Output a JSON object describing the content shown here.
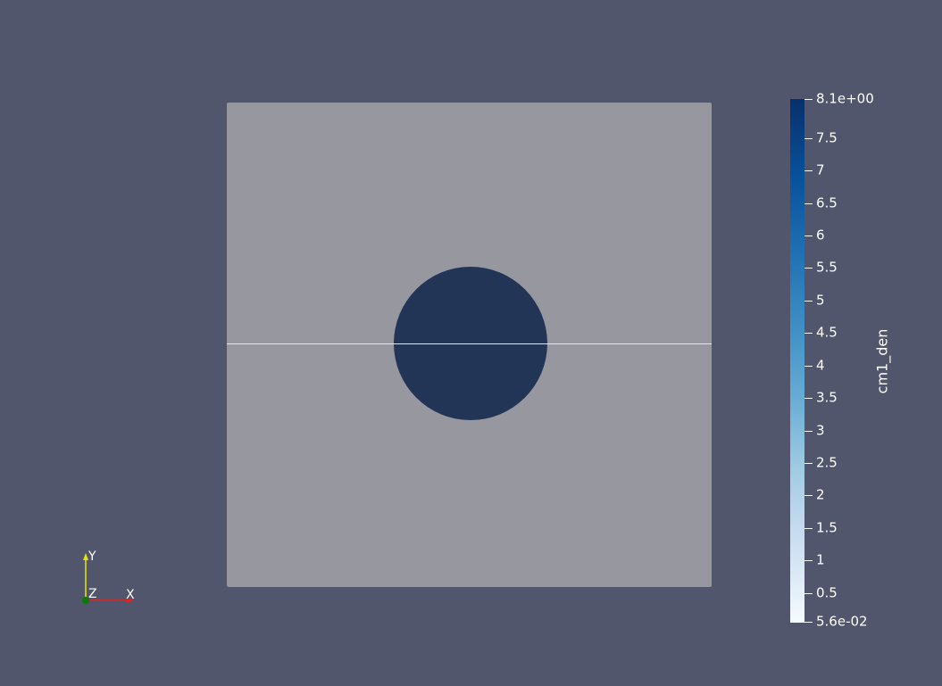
{
  "colorbar": {
    "title": "cm1_den",
    "colors": {
      "dark": "#08306b",
      "light": "#f7fbff"
    },
    "range": [
      0.056,
      8.1
    ],
    "ticks": [
      {
        "label": "8.1e+00",
        "value": 8.1
      },
      {
        "label": "7.5",
        "value": 7.5
      },
      {
        "label": "7",
        "value": 7
      },
      {
        "label": "6.5",
        "value": 6.5
      },
      {
        "label": "6",
        "value": 6
      },
      {
        "label": "5.5",
        "value": 5.5
      },
      {
        "label": "5",
        "value": 5
      },
      {
        "label": "4.5",
        "value": 4.5
      },
      {
        "label": "4",
        "value": 4
      },
      {
        "label": "3.5",
        "value": 3.5
      },
      {
        "label": "3",
        "value": 3
      },
      {
        "label": "2.5",
        "value": 2.5
      },
      {
        "label": "2",
        "value": 2
      },
      {
        "label": "1.5",
        "value": 1.5
      },
      {
        "label": "1",
        "value": 1
      },
      {
        "label": "0.5",
        "value": 0.5
      },
      {
        "label": "5.6e-02",
        "value": 0.056
      }
    ]
  },
  "orientation_axes": {
    "x_label": "X",
    "y_label": "Y",
    "z_label": "Z",
    "colors": {
      "x": "#e6201c",
      "y": "#e6e600",
      "z": "#0a7a0a"
    }
  },
  "scene": {
    "background": "#52566c",
    "domain_color": "#97979f",
    "blob_color": "#233556"
  }
}
